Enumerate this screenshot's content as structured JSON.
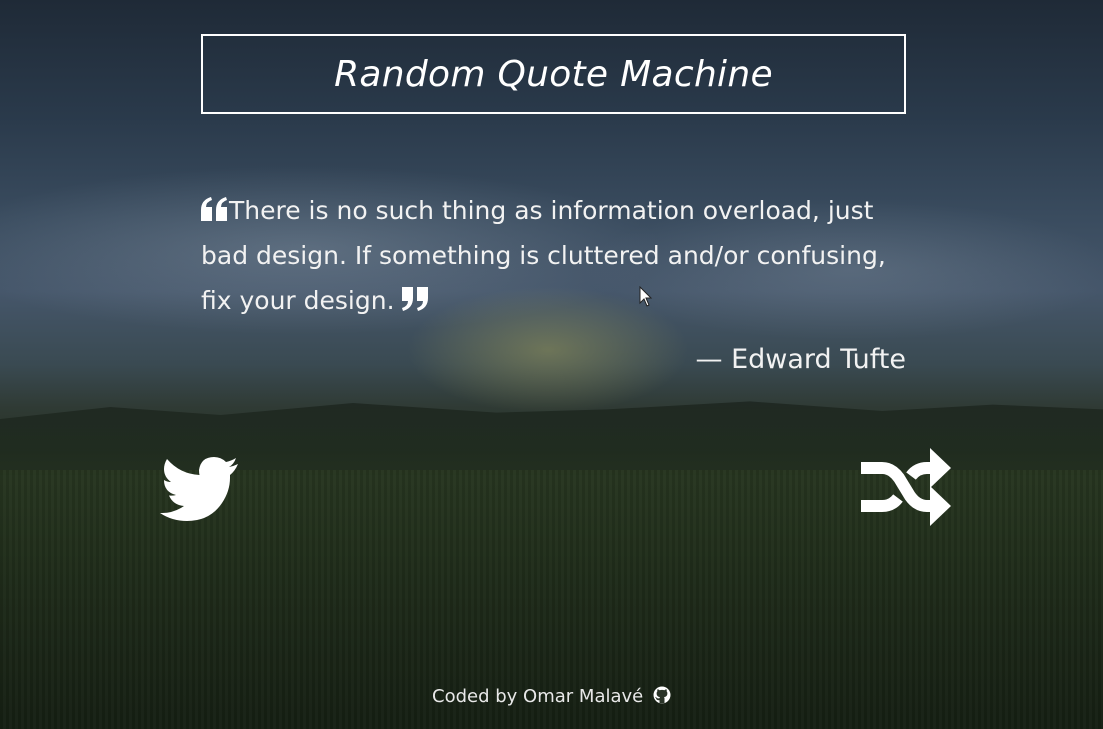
{
  "page": {
    "title": "Random Quote Machine"
  },
  "quote": {
    "text": "There is no such thing as information overload, just bad design. If something is cluttered and/or confusing, fix your design.",
    "author": "— Edward Tufte",
    "open_quote_icon": "left-quote-icon",
    "close_quote_icon": "right-quote-icon"
  },
  "actions": {
    "tweet_icon": "twitter-icon",
    "new_quote_icon": "shuffle-icon"
  },
  "footer": {
    "credit": "Coded by Omar Malavé",
    "link_icon": "github-icon"
  },
  "colors": {
    "text": "#ffffff",
    "background_sky": "#2a3a4b",
    "background_field": "#222f1e"
  }
}
